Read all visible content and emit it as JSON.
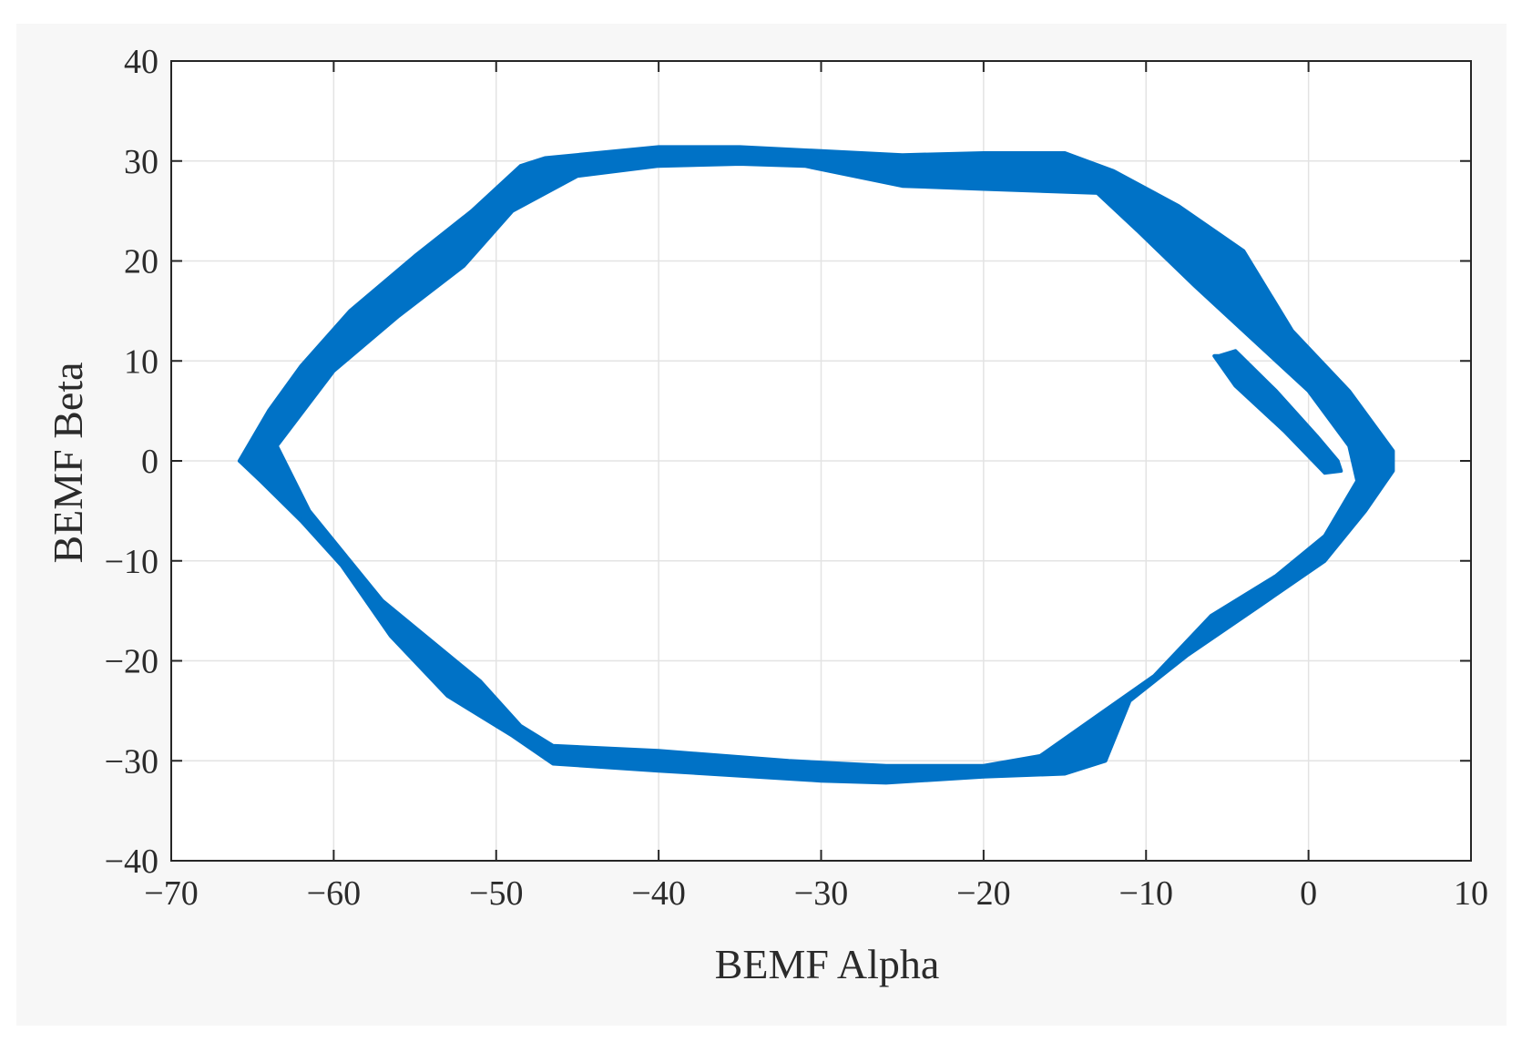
{
  "chart_data": {
    "type": "line",
    "title": "",
    "xlabel": "BEMF Alpha",
    "ylabel": "BEMF Beta",
    "xlim": [
      -70,
      10
    ],
    "ylim": [
      -40,
      40
    ],
    "xticks": [
      -70,
      -60,
      -50,
      -40,
      -30,
      -20,
      -10,
      0,
      10
    ],
    "yticks": [
      -40,
      -30,
      -20,
      -10,
      0,
      10,
      20,
      30,
      40
    ],
    "xtick_labels": [
      "−70",
      "−60",
      "−50",
      "−40",
      "−30",
      "−20",
      "−10",
      "0",
      "10"
    ],
    "ytick_labels": [
      "−40",
      "−30",
      "−20",
      "−10",
      "0",
      "10",
      "20",
      "30",
      "40"
    ],
    "grid": true,
    "legend": false,
    "series_color": "#0072c6",
    "series": [
      {
        "outer": {
          "x": [
            -65.8,
            -64.0,
            -62.0,
            -59.0,
            -55.0,
            -51.5,
            -48.5,
            -47.0,
            -40.0,
            -35.0,
            -30.0,
            -25.0,
            -20.0,
            -15.0,
            -12.0,
            -8.0,
            -4.0,
            -1.0,
            2.5,
            5.2,
            5.2,
            3.5,
            1.0,
            -3.0,
            -7.5,
            -11.0,
            -12.5,
            -15.0,
            -20.0,
            -26.0,
            -30.0,
            -40.0,
            -46.5,
            -49.0,
            -53.0,
            -56.5,
            -59.5,
            -62.0,
            -64.5,
            -65.8
          ],
          "y": [
            0.0,
            5.0,
            9.5,
            15.0,
            20.5,
            25.0,
            29.5,
            30.3,
            31.4,
            31.4,
            31.0,
            30.6,
            30.8,
            30.8,
            29.0,
            25.5,
            21.0,
            13.0,
            7.0,
            1.0,
            -1.0,
            -5.0,
            -10.0,
            -14.5,
            -19.5,
            -24.0,
            -30.0,
            -31.3,
            -31.6,
            -32.2,
            -32.0,
            -31.0,
            -30.3,
            -27.5,
            -23.5,
            -17.5,
            -10.5,
            -6.0,
            -2.0,
            0.0
          ]
        },
        "inner": {
          "x": [
            -63.5,
            -60.0,
            -56.0,
            -52.0,
            -49.0,
            -45.0,
            -40.0,
            -35.0,
            -31.0,
            -25.0,
            -20.0,
            -13.0,
            -10.5,
            -7.0,
            -3.0,
            0.0,
            2.5,
            3.0,
            1.0,
            -2.0,
            -6.0,
            -9.5,
            -13.0,
            -16.5,
            -20.0,
            -26.0,
            -32.0,
            -40.0,
            -46.5,
            -48.5,
            -51.0,
            -54.0,
            -57.0,
            -59.0,
            -61.5,
            -63.5
          ],
          "y": [
            1.5,
            9.0,
            14.5,
            19.5,
            25.0,
            28.5,
            29.5,
            29.7,
            29.5,
            27.5,
            27.2,
            26.8,
            23.0,
            17.5,
            11.5,
            7.0,
            1.5,
            -2.0,
            -7.5,
            -11.5,
            -15.5,
            -21.5,
            -25.5,
            -29.5,
            -30.5,
            -30.5,
            -30.0,
            -29.0,
            -28.5,
            -26.5,
            -22.0,
            -18.0,
            -14.0,
            -10.0,
            -5.0,
            1.5
          ]
        }
      }
    ],
    "inner_loop": {
      "x": [
        -5.5,
        -4.5,
        -2.0,
        0.5,
        1.8,
        2.0,
        1.0,
        -1.5,
        -4.5,
        -5.8
      ],
      "y": [
        10.5,
        11.0,
        7.0,
        2.5,
        0.0,
        -1.0,
        -1.2,
        3.0,
        7.5,
        10.5
      ]
    }
  }
}
